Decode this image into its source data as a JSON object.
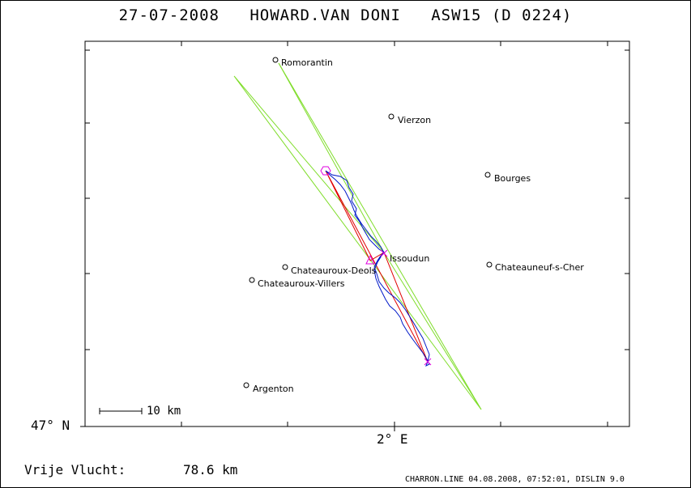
{
  "header": {
    "title": "27-07-2008   HOWARD.VAN DONI   ASW15 (D 0224)"
  },
  "axes": {
    "latitude_label": "47° N",
    "longitude_label": "2° E"
  },
  "scale_bar": {
    "label": "10 km"
  },
  "places": [
    {
      "name": "Romorantin"
    },
    {
      "name": "Vierzon"
    },
    {
      "name": "Bourges"
    },
    {
      "name": "Issoudun"
    },
    {
      "name": "Chateauroux-Deols"
    },
    {
      "name": "Chateauneuf-s-Cher"
    },
    {
      "name": "Chateauroux-Villers"
    },
    {
      "name": "Argenton"
    }
  ],
  "footer": {
    "distance_label": "Vrije Vlucht:",
    "distance_value": "78.6 km",
    "credit": "CHARRON.LINE 04.08.2008, 07:52:01, DISLIN 9.0"
  },
  "colors": {
    "sector": "#7fdd2a",
    "task_line": "#e00000",
    "track": "#0018c8",
    "turnpoint": "#e000e0"
  }
}
